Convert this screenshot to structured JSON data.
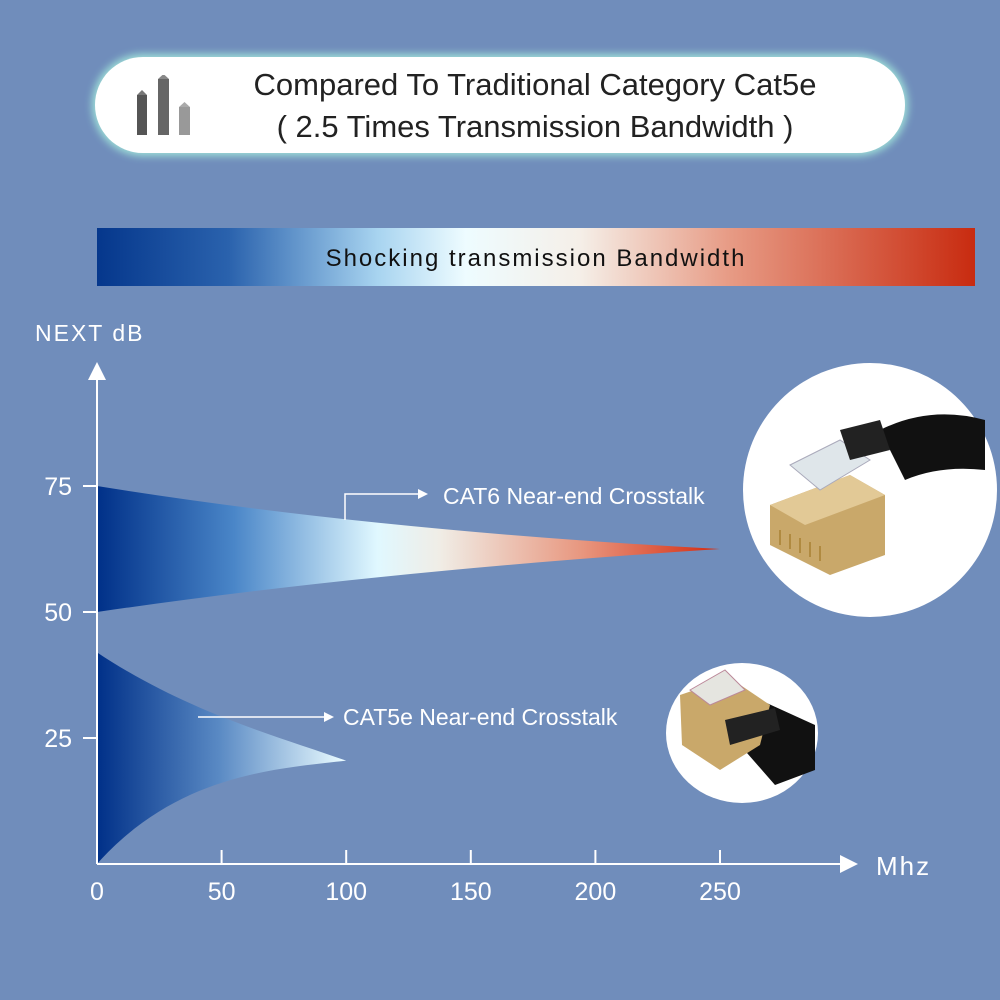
{
  "header": {
    "line1": "Compared To Traditional Category Cat5e",
    "line2": "( 2.5 Times Transmission Bandwidth )",
    "icon": "bar-chart-icon"
  },
  "banner": {
    "label": "Shocking transmission Bandwidth"
  },
  "colors": {
    "background": "#708dbb",
    "deep_blue": "#003088",
    "light": "#e0f8ff",
    "red": "#d42a10"
  },
  "chart_data": {
    "type": "area",
    "ylabel": "NEXT dB",
    "xlabel": "Mhz",
    "xlim": [
      0,
      250
    ],
    "ylim": [
      0,
      75
    ],
    "x_ticks": [
      0,
      50,
      100,
      150,
      200,
      250
    ],
    "y_ticks": [
      25,
      50,
      75
    ],
    "x_tick_labels": [
      "0",
      "50",
      "100",
      "150",
      "200",
      "250"
    ],
    "y_tick_labels": [
      "25",
      "50",
      "75"
    ],
    "grid": false,
    "series": [
      {
        "name": "CAT6 Near-end Crosstalk",
        "start_x": 0,
        "start_upper": 75,
        "start_lower": 50,
        "end_x": 250,
        "end_y": 62.5
      },
      {
        "name": "CAT5e Near-end Crosstalk",
        "start_x": 0,
        "start_upper": 42,
        "start_lower": 0,
        "end_x": 100,
        "end_y": 20.5
      }
    ]
  },
  "images": [
    "cat6-connector-image",
    "cat5e-connector-image"
  ]
}
